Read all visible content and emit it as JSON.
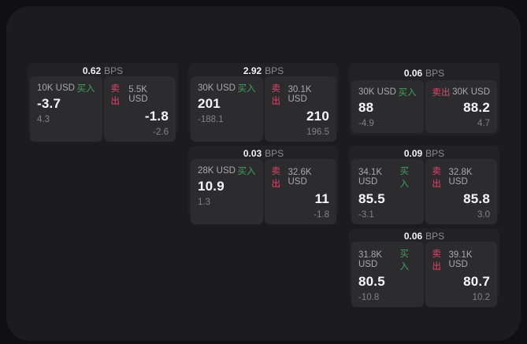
{
  "theme": {
    "page_bg": "#101012",
    "panel_bg": "#1c1c1e",
    "card_bg": "#222224",
    "subpanel_bg": "#2c2c2e",
    "buy_color": "#42a05c",
    "sell_color": "#d84a6b",
    "value_color": "#f7f7f7",
    "muted_color": "#828286"
  },
  "labels": {
    "bps_unit": "BPS",
    "buy": "买入",
    "sell": "卖出"
  },
  "cards": [
    {
      "row": 1,
      "col": 1,
      "bps": "0.62",
      "buy": {
        "amount": "10K USD",
        "value": "-3.7",
        "sub": "4.3"
      },
      "sell": {
        "amount": "5.5K USD",
        "value": "-1.8",
        "sub": "-2.6"
      }
    },
    {
      "row": 1,
      "col": 2,
      "bps": "2.92",
      "buy": {
        "amount": "30K USD",
        "value": "201",
        "sub": "-188.1"
      },
      "sell": {
        "amount": "30.1K USD",
        "value": "210",
        "sub": "196.5"
      }
    },
    {
      "row": 1,
      "col": 3,
      "bps": "0.06",
      "buy": {
        "amount": "30K USD",
        "value": "88",
        "sub": "-4.9"
      },
      "sell": {
        "amount": "30K USD",
        "value": "88.2",
        "sub": "4.7"
      }
    },
    {
      "row": 2,
      "col": 2,
      "bps": "0.03",
      "buy": {
        "amount": "28K USD",
        "value": "10.9",
        "sub": "1.3"
      },
      "sell": {
        "amount": "32.6K USD",
        "value": "11",
        "sub": "-1.8"
      }
    },
    {
      "row": 2,
      "col": 3,
      "bps": "0.09",
      "buy": {
        "amount": "34.1K USD",
        "value": "85.5",
        "sub": "-3.1"
      },
      "sell": {
        "amount": "32.8K USD",
        "value": "85.8",
        "sub": "3.0"
      }
    },
    {
      "row": 3,
      "col": 3,
      "bps": "0.06",
      "buy": {
        "amount": "31.8K USD",
        "value": "80.5",
        "sub": "-10.8"
      },
      "sell": {
        "amount": "39.1K USD",
        "value": "80.7",
        "sub": "10.2"
      }
    }
  ]
}
